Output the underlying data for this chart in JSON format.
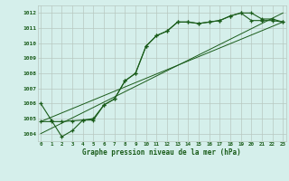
{
  "bg_color": "#d5efeb",
  "grid_color": "#b8c8c0",
  "line_color": "#1a5c1a",
  "xlabel": "Graphe pression niveau de la mer (hPa)",
  "x_ticks": [
    0,
    1,
    2,
    3,
    4,
    5,
    6,
    7,
    8,
    9,
    10,
    11,
    12,
    13,
    14,
    15,
    16,
    17,
    18,
    19,
    20,
    21,
    22,
    23
  ],
  "ylim": [
    1003.5,
    1012.5
  ],
  "yticks": [
    1004,
    1005,
    1006,
    1007,
    1008,
    1009,
    1010,
    1011,
    1012
  ],
  "xlim": [
    -0.3,
    23.3
  ],
  "series1": {
    "x": [
      0,
      1,
      2,
      3,
      4,
      5,
      6,
      7,
      8,
      9,
      10,
      11,
      12,
      13,
      14,
      15,
      16,
      17,
      18,
      19,
      20,
      21,
      22,
      23
    ],
    "y": [
      1006.0,
      1004.9,
      1003.8,
      1004.2,
      1004.9,
      1004.9,
      1005.9,
      1006.3,
      1007.5,
      1008.0,
      1009.8,
      1010.5,
      1010.8,
      1011.4,
      1011.4,
      1011.3,
      1011.4,
      1011.5,
      1011.8,
      1012.0,
      1012.0,
      1011.6,
      1011.6,
      1011.4
    ]
  },
  "series2": {
    "x": [
      0,
      1,
      2,
      3,
      4,
      5,
      6,
      7,
      8,
      9,
      10,
      11,
      12,
      13,
      14,
      15,
      16,
      17,
      18,
      19,
      20,
      21,
      22,
      23
    ],
    "y": [
      1004.8,
      1004.8,
      1004.8,
      1004.85,
      1004.9,
      1005.0,
      1005.9,
      1006.3,
      1007.5,
      1008.0,
      1009.8,
      1010.5,
      1010.8,
      1011.4,
      1011.4,
      1011.3,
      1011.4,
      1011.5,
      1011.8,
      1012.0,
      1011.5,
      1011.5,
      1011.5,
      1011.4
    ]
  },
  "series3": {
    "x": [
      0,
      23
    ],
    "y": [
      1004.8,
      1011.4
    ]
  },
  "series4": {
    "x": [
      0,
      23
    ],
    "y": [
      1004.0,
      1012.0
    ]
  }
}
